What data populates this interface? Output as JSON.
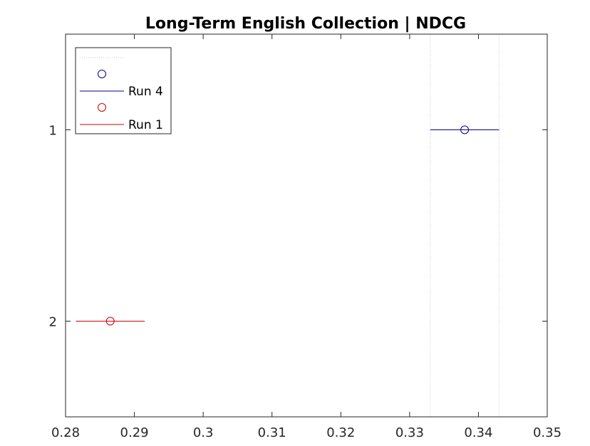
{
  "chart_data": {
    "type": "scatter",
    "title": "Long-Term English Collection | NDCG",
    "xlabel": "",
    "ylabel": "",
    "xlim": [
      0.28,
      0.35
    ],
    "ylim": [
      0.5,
      2.5
    ],
    "y_reversed": true,
    "x_ticks": [
      0.28,
      0.29,
      0.3,
      0.31,
      0.32,
      0.33,
      0.34,
      0.35
    ],
    "x_tick_labels": [
      "0.28",
      "0.29",
      "0.3",
      "0.31",
      "0.32",
      "0.33",
      "0.34",
      "0.35"
    ],
    "y_ticks": [
      1,
      2
    ],
    "y_tick_labels": [
      "1",
      "2"
    ],
    "grid": false,
    "legend_position": "top-left",
    "series": [
      {
        "name": "Run 4",
        "color": "#00008b",
        "y": 1,
        "mean": 0.338,
        "interval": [
          0.333,
          0.343
        ]
      },
      {
        "name": "Run 1",
        "color": "#cc0000",
        "y": 2,
        "mean": 0.2865,
        "interval": [
          0.2815,
          0.2915
        ]
      }
    ],
    "reference_lines": {
      "x": [
        0.333,
        0.343
      ],
      "color": "#c8c8c8",
      "style": "dotted"
    }
  }
}
